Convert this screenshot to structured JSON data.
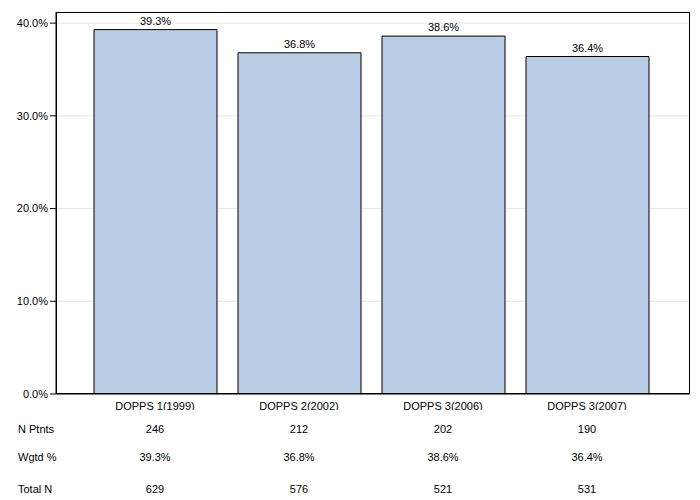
{
  "chart_data": {
    "type": "bar",
    "categories": [
      "DOPPS 1(1999)",
      "DOPPS 2(2002)",
      "DOPPS 3(2006)",
      "DOPPS 3(2007)"
    ],
    "values": [
      39.3,
      36.8,
      38.6,
      36.4
    ],
    "value_labels": [
      "39.3%",
      "36.8%",
      "38.6%",
      "36.4%"
    ],
    "data_labels": true,
    "color": "#b9cde5",
    "ylim": [
      0,
      41.2
    ],
    "yticks": [
      {
        "value": 0,
        "label": "0.0%"
      },
      {
        "value": 10,
        "label": "10.0%"
      },
      {
        "value": 20,
        "label": "20.0%"
      },
      {
        "value": 30,
        "label": "30.0%"
      },
      {
        "value": 40,
        "label": "40.0%"
      }
    ],
    "grid": true
  },
  "table": {
    "rows": [
      {
        "label": "N Ptnts",
        "values": [
          246,
          212,
          202,
          190
        ]
      },
      {
        "label": "Wgtd %",
        "values": [
          "39.3%",
          "36.8%",
          "38.6%",
          "36.4%"
        ]
      },
      {
        "label": "Total N",
        "values": [
          629,
          576,
          521,
          531
        ]
      }
    ]
  }
}
